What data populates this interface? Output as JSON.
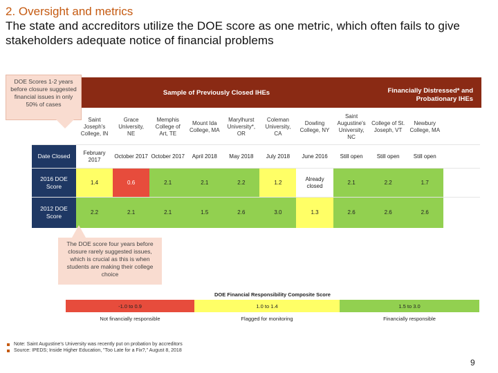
{
  "title": {
    "line1": "2. Oversight and metrics",
    "line2": "The state and accreditors utilize the DOE score as one metric, which often fails to give stakeholders adequate notice of financial problems"
  },
  "callout_top": "DOE Scores 1-2 years before closure suggested financial issues in only 50% of cases",
  "header_band": {
    "left_label": "Sample of Previously Closed IHEs",
    "right_label": "Financially Distressed* and Probationary IHEs"
  },
  "columns": [
    "Saint Joseph's College, IN",
    "Grace University, NE",
    "Memphis College of Art, TE",
    "Mount Ida College, MA",
    "Marylhurst University*, OR",
    "Coleman University, CA",
    "Dowling College, NY",
    "Saint Augustine's University, NC",
    "College of St. Joseph, VT",
    "Newbury College, MA"
  ],
  "rows": [
    {
      "label": "Date Closed",
      "values": [
        "February 2017",
        "October 2017",
        "October 2017",
        "April 2018",
        "May 2018",
        "July 2018",
        "June 2016",
        "Still open",
        "Still open",
        "Still open"
      ]
    },
    {
      "label": "2016 DOE Score",
      "values": [
        "1.4",
        "0.6",
        "2.1",
        "2.1",
        "2.2",
        "1.2",
        "Already closed",
        "2.1",
        "2.2",
        "1.7"
      ]
    },
    {
      "label": "2012 DOE Score",
      "values": [
        "2.2",
        "2.1",
        "2.1",
        "1.5",
        "2.6",
        "3.0",
        "1.3",
        "2.6",
        "2.6",
        "2.6"
      ]
    }
  ],
  "callout_bottom": "The DOE score four years before closure rarely suggested issues, which is crucial as this is when students are making their college choice",
  "legend": {
    "title": "DOE Financial Responsibility Composite Score",
    "ranges": [
      "-1.0 to 0.9",
      "1.0 to 1.4",
      "1.5 to 3.0"
    ],
    "labels": [
      "Not financially responsible",
      "Flagged for monitoring",
      "Financially responsible"
    ]
  },
  "notes": [
    "Note: Saint Augustine's University was recently put on probation by accreditors",
    "Source: IPEDS; Inside Higher Education, \"Too Late for a Fix?,\" August 8, 2018"
  ],
  "page_number": "9",
  "colors": {
    "title_accent": "#c55a11",
    "band": "#8a2a14",
    "row_label_bg": "#1f3864",
    "score_red": "#e74c3c",
    "score_yellow": "#ffff66",
    "score_green": "#92d050",
    "callout_bg": "#f9dcd0"
  }
}
